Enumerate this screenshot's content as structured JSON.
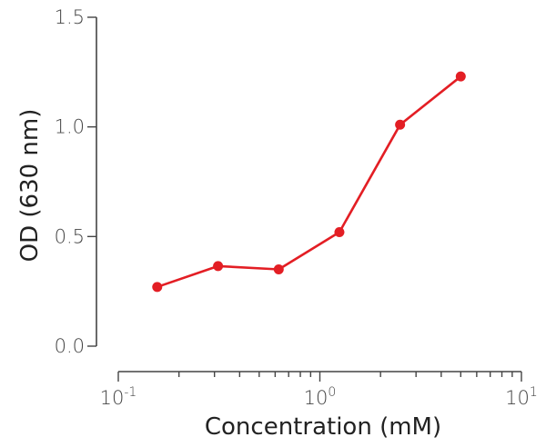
{
  "chart_data": {
    "type": "line",
    "xlabel": "Concentration (mM)",
    "ylabel": "OD (630 nm)",
    "x_scale": "log",
    "xlim": [
      0.1,
      10
    ],
    "ylim": [
      0.0,
      1.5
    ],
    "x_tick_labels": [
      {
        "base": "10",
        "exp": "-1",
        "value": 0.1
      },
      {
        "base": "10",
        "exp": "0",
        "value": 1
      },
      {
        "base": "10",
        "exp": "1",
        "value": 10
      }
    ],
    "y_ticks": [
      {
        "label": "0.0",
        "value": 0.0
      },
      {
        "label": "0.5",
        "value": 0.5
      },
      {
        "label": "1.0",
        "value": 1.0
      },
      {
        "label": "1.5",
        "value": 1.5
      }
    ],
    "grid": false,
    "color": "#e31e24",
    "series": [
      {
        "x": [
          0.156,
          0.3125,
          0.625,
          1.25,
          2.5,
          5.0
        ],
        "y": [
          0.27,
          0.365,
          0.35,
          0.52,
          1.01,
          1.23
        ]
      }
    ]
  }
}
